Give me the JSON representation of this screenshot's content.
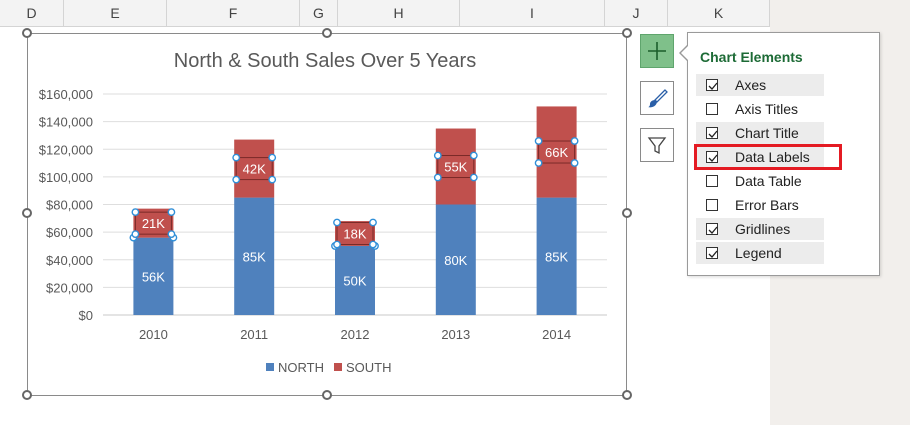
{
  "columns": [
    "D",
    "E",
    "F",
    "G",
    "H",
    "I",
    "J",
    "K"
  ],
  "chart_data": {
    "type": "bar",
    "stacked": true,
    "title": "North & South Sales Over 5 Years",
    "categories": [
      "2010",
      "2011",
      "2012",
      "2013",
      "2014"
    ],
    "series": [
      {
        "name": "NORTH",
        "values": [
          56000,
          85000,
          50000,
          80000,
          85000
        ],
        "labels": [
          "56K",
          "85K",
          "50K",
          "80K",
          "85K"
        ],
        "color": "#4f81bd"
      },
      {
        "name": "SOUTH",
        "values": [
          21000,
          42000,
          18000,
          55000,
          66000
        ],
        "labels": [
          "21K",
          "42K",
          "18K",
          "55K",
          "66K"
        ],
        "color": "#c0504d"
      }
    ],
    "ylim": [
      0,
      160000
    ],
    "yticks": [
      "$0",
      "$20,000",
      "$40,000",
      "$60,000",
      "$80,000",
      "$100,000",
      "$120,000",
      "$140,000",
      "$160,000"
    ],
    "grid": true,
    "legend": "bottom"
  },
  "side_buttons": [
    {
      "icon": "plus-icon",
      "label": "Chart Elements",
      "active": true
    },
    {
      "icon": "brush-icon",
      "label": "Chart Styles",
      "active": false
    },
    {
      "icon": "filter-icon",
      "label": "Chart Filters",
      "active": false
    }
  ],
  "popup": {
    "title": "Chart Elements",
    "options": [
      {
        "label": "Axes",
        "checked": true
      },
      {
        "label": "Axis Titles",
        "checked": false
      },
      {
        "label": "Chart Title",
        "checked": true
      },
      {
        "label": "Data Labels",
        "checked": true
      },
      {
        "label": "Data Table",
        "checked": false
      },
      {
        "label": "Error Bars",
        "checked": false
      },
      {
        "label": "Gridlines",
        "checked": true
      },
      {
        "label": "Legend",
        "checked": true
      }
    ]
  },
  "colors": {
    "accent_green": "#1d6b36",
    "highlight_red": "#e41b23"
  }
}
